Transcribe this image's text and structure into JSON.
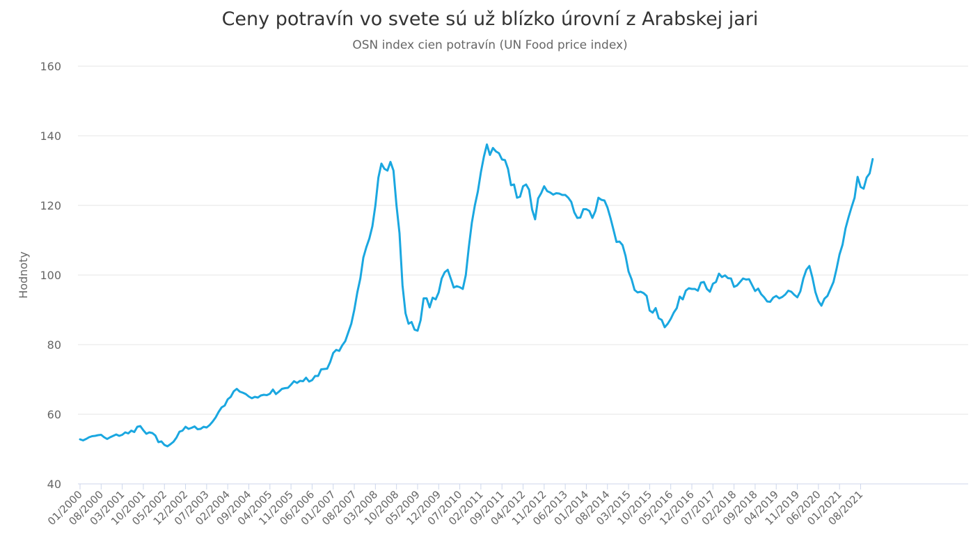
{
  "chart_data": {
    "type": "line",
    "title": "Ceny potravín vo svete sú už blízko úrovní z Arabskej jari",
    "subtitle": "OSN index cien potravín (UN Food price index)",
    "ylabel": "Hodnoty",
    "ylim": [
      40,
      160
    ],
    "yticks": [
      40,
      60,
      80,
      100,
      120,
      140,
      160
    ],
    "grid": true,
    "line_color": "#1aa7e0",
    "x_tick_labels": [
      "01/2000",
      "08/2000",
      "03/2001",
      "10/2001",
      "05/2002",
      "12/2002",
      "07/2003",
      "02/2004",
      "09/2004",
      "04/2005",
      "11/2005",
      "06/2006",
      "01/2007",
      "08/2007",
      "03/2008",
      "10/2008",
      "05/2009",
      "12/2009",
      "07/2010",
      "02/2011",
      "09/2011",
      "04/2012",
      "11/2012",
      "06/2013",
      "01/2014",
      "08/2014",
      "03/2015",
      "10/2015",
      "05/2016",
      "12/2016",
      "07/2017",
      "02/2018",
      "09/2018",
      "04/2019",
      "11/2019",
      "06/2020",
      "01/2021",
      "08/2021"
    ],
    "series": [
      {
        "start": "01/2000",
        "frequency": "monthly",
        "values": [
          52.8,
          52.5,
          52.9,
          53.4,
          53.7,
          53.8,
          54.0,
          54.1,
          53.4,
          52.9,
          53.4,
          53.8,
          54.2,
          53.8,
          54.1,
          54.8,
          54.5,
          55.3,
          54.9,
          56.4,
          56.6,
          55.4,
          54.4,
          54.8,
          54.6,
          53.9,
          52.0,
          52.2,
          51.2,
          50.8,
          51.4,
          52.1,
          53.3,
          55.0,
          55.3,
          56.4,
          55.8,
          56.1,
          56.5,
          55.7,
          55.8,
          56.4,
          56.2,
          56.9,
          57.9,
          59.1,
          60.7,
          62.0,
          62.5,
          64.3,
          65.0,
          66.6,
          67.3,
          66.5,
          66.2,
          65.8,
          65.1,
          64.6,
          65.0,
          64.8,
          65.4,
          65.6,
          65.5,
          65.9,
          67.1,
          65.8,
          66.5,
          67.3,
          67.5,
          67.6,
          68.5,
          69.5,
          69.0,
          69.6,
          69.5,
          70.5,
          69.4,
          69.8,
          71.0,
          71.0,
          72.9,
          73.0,
          73.1,
          75.0,
          77.6,
          78.5,
          78.2,
          79.8,
          81.0,
          83.5,
          86.0,
          90.0,
          95.0,
          99.0,
          105.0,
          108.0,
          110.5,
          114.0,
          120.0,
          128.0,
          132.0,
          130.5,
          130.0,
          132.5,
          130.0,
          120.0,
          112.0,
          97.0,
          89.0,
          86.0,
          86.5,
          84.3,
          84.0,
          87.0,
          93.3,
          93.3,
          90.7,
          93.5,
          93.0,
          95.0,
          99.0,
          100.8,
          101.5,
          99.0,
          96.4,
          96.8,
          96.5,
          96.0,
          100.0,
          108.0,
          115.0,
          120.0,
          124.0,
          129.5,
          134.0,
          137.5,
          134.5,
          136.5,
          135.5,
          135.0,
          133.2,
          133.0,
          130.5,
          125.8,
          126.0,
          122.2,
          122.5,
          125.5,
          126.0,
          124.5,
          118.8,
          116.0,
          122.0,
          123.5,
          125.5,
          124.1,
          123.7,
          123.1,
          123.5,
          123.4,
          123.0,
          123.0,
          122.2,
          121.0,
          118.0,
          116.4,
          116.5,
          118.9,
          118.9,
          118.4,
          116.4,
          118.4,
          122.2,
          121.6,
          121.4,
          119.4,
          116.4,
          113.0,
          109.5,
          109.6,
          108.6,
          105.5,
          101.0,
          98.8,
          95.7,
          95.0,
          95.2,
          94.8,
          94.0,
          89.8,
          89.2,
          90.5,
          87.6,
          87.1,
          85.0,
          86.0,
          87.4,
          89.2,
          90.5,
          93.8,
          93.0,
          95.5,
          96.2,
          96.0,
          96.0,
          95.5,
          97.8,
          98.0,
          96.0,
          95.2,
          97.5,
          98.0,
          100.4,
          99.4,
          99.9,
          99.1,
          99.0,
          96.6,
          97.0,
          98.0,
          99.0,
          98.7,
          98.8,
          97.1,
          95.4,
          96.1,
          94.5,
          93.6,
          92.4,
          92.3,
          93.5,
          94.0,
          93.3,
          93.7,
          94.4,
          95.5,
          95.2,
          94.3,
          93.6,
          95.3,
          99.0,
          101.5,
          102.6,
          99.3,
          95.1,
          92.5,
          91.2,
          93.2,
          94.0,
          96.0,
          98.0,
          101.7,
          105.9,
          108.7,
          113.4,
          116.6,
          119.5,
          122.2,
          128.2,
          125.3,
          124.8,
          128.0,
          129.2,
          133.3
        ]
      }
    ]
  }
}
